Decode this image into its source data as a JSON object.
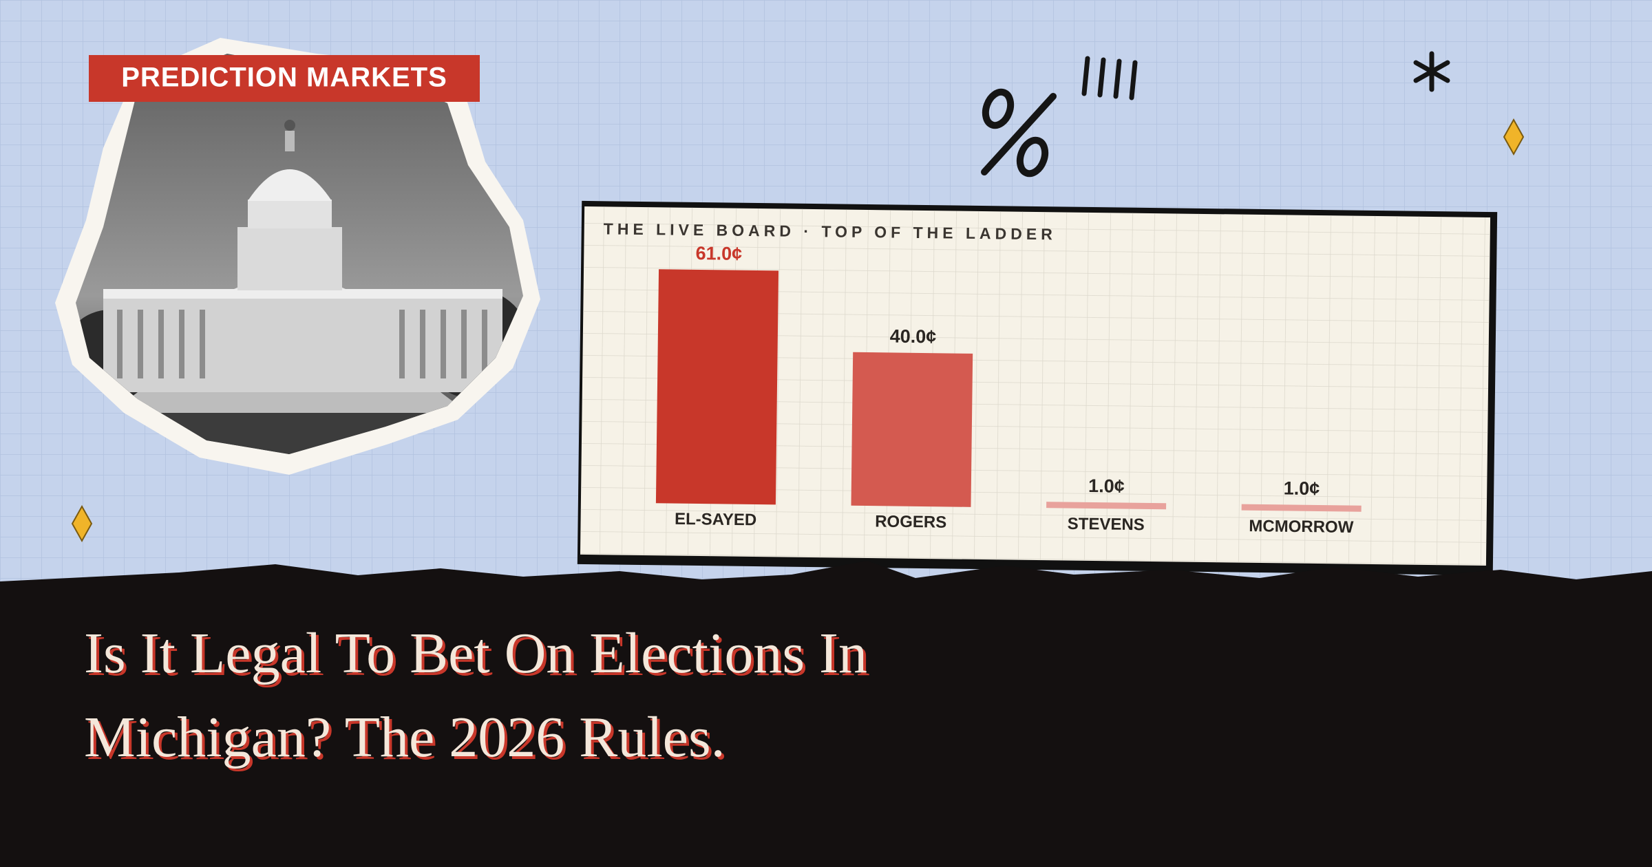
{
  "tag": "PREDICTION MARKETS",
  "headline": {
    "lines": [
      "Is It Legal To Bet On Elections In",
      "Michigan? The 2026 Rules."
    ]
  },
  "chart_data": {
    "type": "bar",
    "title": "THE LIVE BOARD · TOP OF THE LADDER",
    "categories": [
      "EL-SAYED",
      "ROGERS",
      "STEVENS",
      "MCMORROW"
    ],
    "values": [
      61.0,
      40.0,
      1.0,
      1.0
    ],
    "value_labels": [
      "61.0¢",
      "40.0¢",
      "1.0¢",
      "1.0¢"
    ],
    "colors": [
      "#c8372a",
      "#d45a50",
      "#e8a29c",
      "#e8a29c"
    ]
  }
}
